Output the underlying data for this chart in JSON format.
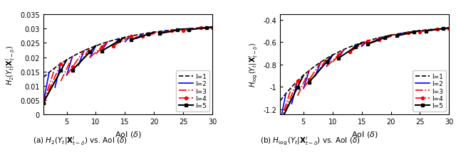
{
  "title_a": "(a) $H_2(Y_t|\\mathbf{X}^l_{t-\\delta})$ vs. AoI ($\\delta$)",
  "title_b": "(b) $H_{\\log}(Y_t|\\mathbf{X}^l_{t-\\delta})$ vs. AoI ($\\delta$)",
  "xlabel": "AoI ($\\delta$)",
  "ylabel_a": "$H_2(Y_t|\\mathbf{X}^l_{t-\\delta})$",
  "ylabel_b": "$H_{\\log}(Y_t|\\mathbf{X}^l_{t-\\delta})$",
  "xlim": [
    1,
    30
  ],
  "ylim_a": [
    0,
    0.035
  ],
  "ylim_b": [
    -1.25,
    -0.35
  ],
  "yticks_a": [
    0,
    0.005,
    0.01,
    0.015,
    0.02,
    0.025,
    0.03,
    0.035
  ],
  "yticks_b": [
    -1.2,
    -1.0,
    -0.8,
    -0.6,
    -0.4
  ],
  "xticks": [
    5,
    10,
    15,
    20,
    25,
    30
  ],
  "legend_labels": [
    "l=1",
    "l=2",
    "l=3",
    "l=4",
    "l=5"
  ],
  "colors": [
    "black",
    "blue",
    "red",
    "red",
    "black"
  ],
  "linestyles": [
    "--",
    "-",
    "-.",
    "-.",
    "-"
  ],
  "markers": [
    "",
    "",
    "",
    "o",
    "s"
  ],
  "linewidths": [
    1.2,
    1.2,
    1.2,
    1.2,
    1.5
  ],
  "markersizes": [
    0,
    0,
    0,
    3,
    3
  ]
}
